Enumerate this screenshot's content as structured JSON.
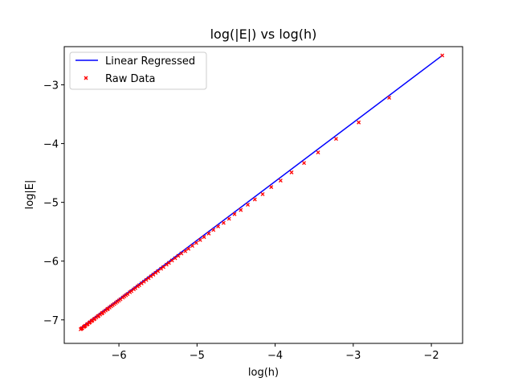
{
  "chart_data": {
    "type": "line",
    "title": "log(|E|) vs log(h)",
    "xlabel": "log(h)",
    "ylabel": "log|E|",
    "xlim": [
      -6.7,
      -1.6
    ],
    "ylim": [
      -7.4,
      -2.35
    ],
    "xticks": [
      -6,
      -5,
      -4,
      -3,
      -2
    ],
    "yticks": [
      -7,
      -6,
      -5,
      -4,
      -3
    ],
    "xtick_labels": [
      "−6",
      "−5",
      "−4",
      "−3",
      "−2"
    ],
    "ytick_labels": [
      "−7",
      "−6",
      "−5",
      "−4",
      "−3"
    ],
    "grid": false,
    "legend": {
      "placement": "top-left",
      "entries": [
        "Linear Regressed",
        "Raw Data"
      ]
    },
    "series": [
      {
        "name": "Linear Regressed",
        "kind": "line",
        "color": "#0000ff",
        "x": [
          -6.49,
          -1.86
        ],
        "y": [
          -7.14,
          -2.5
        ]
      },
      {
        "name": "Raw Data",
        "kind": "scatter",
        "marker": "x",
        "color": "#ff0000",
        "x": [
          -1.86,
          -2.54,
          -2.93,
          -3.22,
          -3.45,
          -3.63,
          -3.79,
          -3.93,
          -4.05,
          -4.16,
          -4.26,
          -4.35,
          -4.44,
          -4.52,
          -4.59,
          -4.66,
          -4.73,
          -4.79,
          -4.85,
          -4.91,
          -4.96,
          -5.01,
          -5.06,
          -5.11,
          -5.15,
          -5.2,
          -5.24,
          -5.28,
          -5.32,
          -5.36,
          -5.39,
          -5.43,
          -5.46,
          -5.5,
          -5.53,
          -5.56,
          -5.59,
          -5.62,
          -5.65,
          -5.68,
          -5.71,
          -5.74,
          -5.76,
          -5.79,
          -5.81,
          -5.84,
          -5.86,
          -5.89,
          -5.91,
          -5.93,
          -5.95,
          -5.98,
          -6.0,
          -6.02,
          -6.04,
          -6.06,
          -6.08,
          -6.1,
          -6.12,
          -6.14,
          -6.15,
          -6.17,
          -6.19,
          -6.21,
          -6.22,
          -6.24,
          -6.26,
          -6.27,
          -6.29,
          -6.31,
          -6.32,
          -6.34,
          -6.35,
          -6.37,
          -6.38,
          -6.4,
          -6.41,
          -6.43,
          -6.44,
          -6.45,
          -6.47,
          -6.48,
          -6.49
        ],
        "y": [
          -2.5,
          -3.22,
          -3.64,
          -3.92,
          -4.15,
          -4.33,
          -4.49,
          -4.63,
          -4.74,
          -4.86,
          -4.95,
          -5.04,
          -5.13,
          -5.2,
          -5.28,
          -5.35,
          -5.41,
          -5.47,
          -5.53,
          -5.59,
          -5.64,
          -5.69,
          -5.74,
          -5.79,
          -5.83,
          -5.87,
          -5.91,
          -5.95,
          -5.99,
          -6.03,
          -6.06,
          -6.1,
          -6.13,
          -6.17,
          -6.2,
          -6.23,
          -6.26,
          -6.29,
          -6.32,
          -6.35,
          -6.38,
          -6.41,
          -6.43,
          -6.46,
          -6.48,
          -6.51,
          -6.53,
          -6.56,
          -6.58,
          -6.6,
          -6.62,
          -6.65,
          -6.67,
          -6.69,
          -6.71,
          -6.73,
          -6.75,
          -6.77,
          -6.79,
          -6.81,
          -6.82,
          -6.84,
          -6.86,
          -6.88,
          -6.89,
          -6.91,
          -6.93,
          -6.94,
          -6.96,
          -6.98,
          -6.99,
          -7.01,
          -7.02,
          -7.04,
          -7.05,
          -7.07,
          -7.08,
          -7.1,
          -7.11,
          -7.12,
          -7.14,
          -7.15,
          -7.16
        ]
      }
    ]
  }
}
